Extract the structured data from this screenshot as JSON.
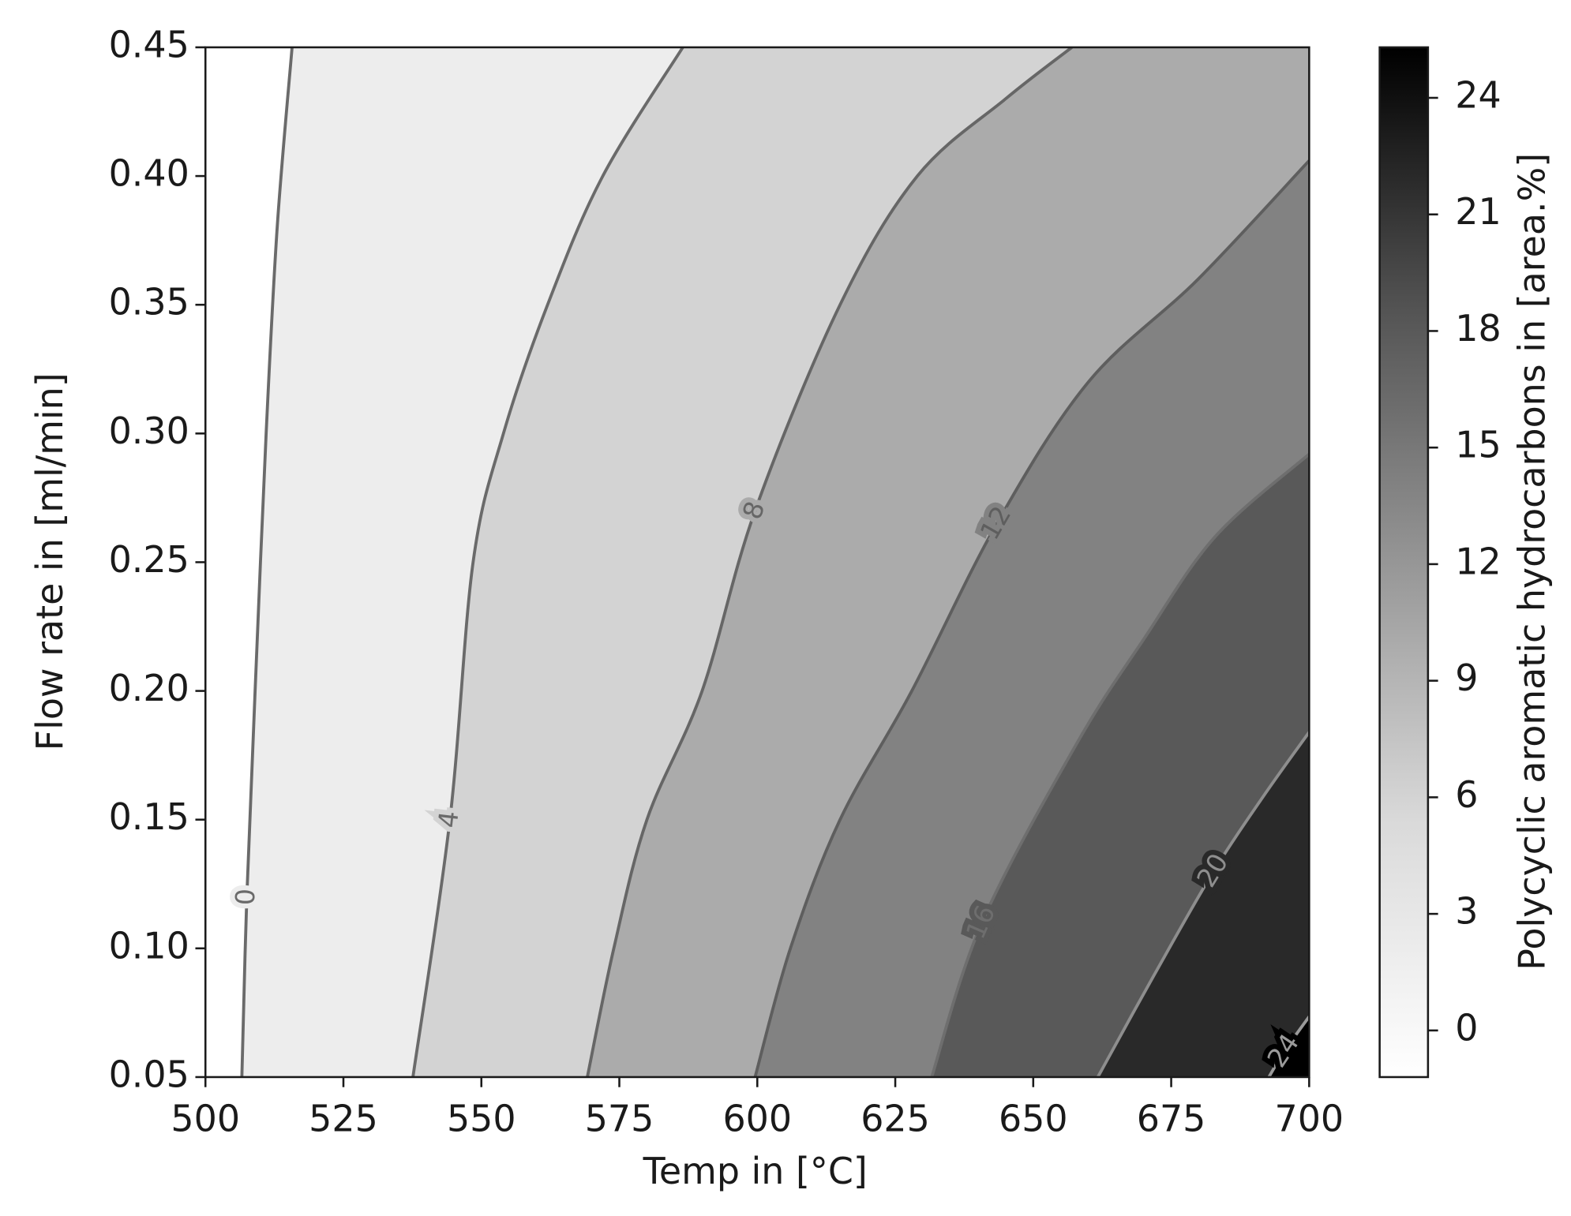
{
  "chart_data": {
    "type": "contour",
    "xlabel": "Temp in [°C]",
    "ylabel": "Flow rate in [ml/min]",
    "xlim": [
      500,
      700
    ],
    "ylim": [
      0.05,
      0.45
    ],
    "xticks": [
      500,
      525,
      550,
      575,
      600,
      625,
      650,
      675,
      700
    ],
    "yticks": [
      0.05,
      {
        "value": 0.1,
        "label": "0.10"
      },
      0.15,
      {
        "value": 0.2,
        "label": "0.20"
      },
      0.25,
      {
        "value": 0.3,
        "label": "0.30"
      },
      0.35,
      {
        "value": 0.4,
        "label": "0.40"
      },
      0.45
    ],
    "colorbar": {
      "label": "Polycyclic aromatic hydrocarbons in [area.%]",
      "lim": [
        -1.2,
        25.3
      ],
      "ticks": [
        0,
        3,
        6,
        9,
        12,
        15,
        18,
        21,
        24
      ]
    },
    "contours": [
      {
        "level": 0,
        "color": "#6a6a6a",
        "x": [
          506.6,
          507.5,
          509,
          511,
          513,
          515.7
        ],
        "y": [
          0.05,
          0.12,
          0.2,
          0.3,
          0.38,
          0.45
        ]
      },
      {
        "level": 4,
        "color": "#6a6a6a",
        "x": [
          537.6,
          544.3,
          548.5,
          554,
          562,
          572,
          586.5
        ],
        "y": [
          0.05,
          0.15,
          0.25,
          0.3,
          0.35,
          0.4,
          0.45
        ]
      },
      {
        "level": 8,
        "color": "#666666",
        "x": [
          569.2,
          574,
          580,
          590,
          599.6,
          615,
          629,
          645,
          657
        ],
        "y": [
          0.05,
          0.1,
          0.15,
          0.2,
          0.27,
          0.35,
          0.4,
          0.43,
          0.45
        ]
      },
      {
        "level": 12,
        "color": "#5e5e5e",
        "x": [
          599.6,
          606,
          615,
          628,
          643.4,
          660,
          679.9,
          700
        ],
        "y": [
          0.05,
          0.1,
          0.15,
          0.2,
          0.265,
          0.32,
          0.36,
          0.406
        ]
      },
      {
        "level": 16,
        "color": "#6e6e6e",
        "x": [
          631.6,
          640.7,
          658,
          670,
          683,
          700
        ],
        "y": [
          0.05,
          0.11,
          0.18,
          0.22,
          0.26,
          0.292
        ]
      },
      {
        "level": 20,
        "color": "#8e8e8e",
        "x": [
          661.7,
          672,
          682.7,
          692,
          700
        ],
        "y": [
          0.05,
          0.09,
          0.13,
          0.16,
          0.184
        ]
      },
      {
        "level": 24,
        "color": "#9a9a9a",
        "x": [
          692.7,
          695.5,
          700
        ],
        "y": [
          0.05,
          0.06,
          0.0735
        ]
      }
    ]
  }
}
